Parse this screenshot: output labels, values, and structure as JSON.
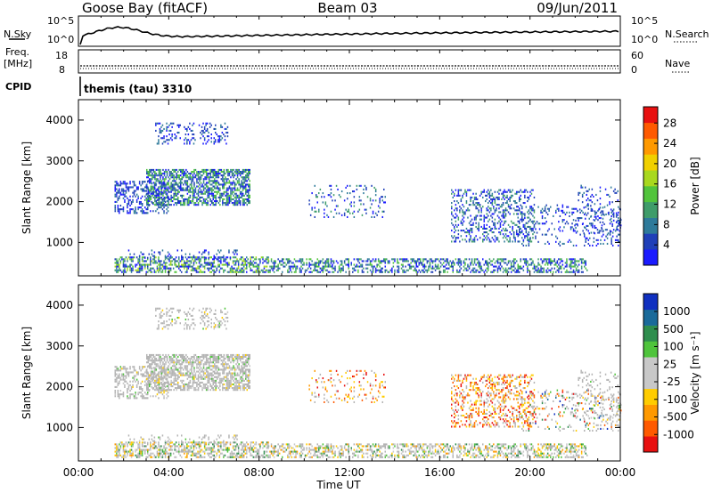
{
  "header": {
    "station": "Goose Bay (fitACF)",
    "beam": "Beam 03",
    "date": "09/Jun/2011"
  },
  "noise_panel": {
    "left_label": "N.Sky",
    "right_label": "N.Search",
    "left_ticks": [
      "10^5",
      "10^0"
    ],
    "right_ticks": [
      "10^5",
      "10^0"
    ]
  },
  "freq_panel": {
    "left_label_line1": "Freq.",
    "left_label_line2": "[MHz]",
    "right_label": "Nave",
    "left_ticks": [
      "18",
      "8"
    ],
    "right_ticks": [
      "60",
      "0"
    ]
  },
  "cpid": {
    "label": "CPID",
    "value": "themis (tau) 3310"
  },
  "colors": {
    "power_scale": [
      "#1a1aff",
      "#1f3fb8",
      "#2e7a9a",
      "#3f9c6a",
      "#52c43c",
      "#a8d81e",
      "#f0d000",
      "#ff9900",
      "#ff5a00",
      "#e81010"
    ],
    "velocity_scale": [
      "#1030c0",
      "#1a6a9a",
      "#2f8e4e",
      "#4fc43c",
      "#c8c8c8",
      "#c8c8c8",
      "#ffcc00",
      "#ff9900",
      "#ff5a00",
      "#e81010"
    ],
    "ground_scatter": "#b4b4b4"
  },
  "chart_data": [
    {
      "type": "heatmap",
      "title": "",
      "xlabel": "",
      "ylabel": "Slant Range [km]",
      "colorbar_label": "Power [dB]",
      "colorbar_ticks": [
        "4",
        "8",
        "12",
        "16",
        "20",
        "24",
        "28"
      ],
      "xlim": [
        0,
        24
      ],
      "ylim": [
        180,
        4500
      ],
      "y_ticks": [
        "1000",
        "2000",
        "3000",
        "4000"
      ]
    },
    {
      "type": "heatmap",
      "title": "",
      "xlabel": "Time UT",
      "ylabel": "Slant Range [km]",
      "colorbar_label": "Velocity [m s⁻¹]",
      "colorbar_ticks": [
        "1000",
        "500",
        "100",
        "25",
        "-25",
        "-100",
        "-500",
        "-1000"
      ],
      "xlim": [
        0,
        24
      ],
      "ylim": [
        180,
        4500
      ],
      "y_ticks": [
        "1000",
        "2000",
        "3000",
        "4000"
      ],
      "x_ticks": [
        "00:00",
        "04:00",
        "08:00",
        "12:00",
        "16:00",
        "20:00",
        "00:00"
      ]
    }
  ]
}
